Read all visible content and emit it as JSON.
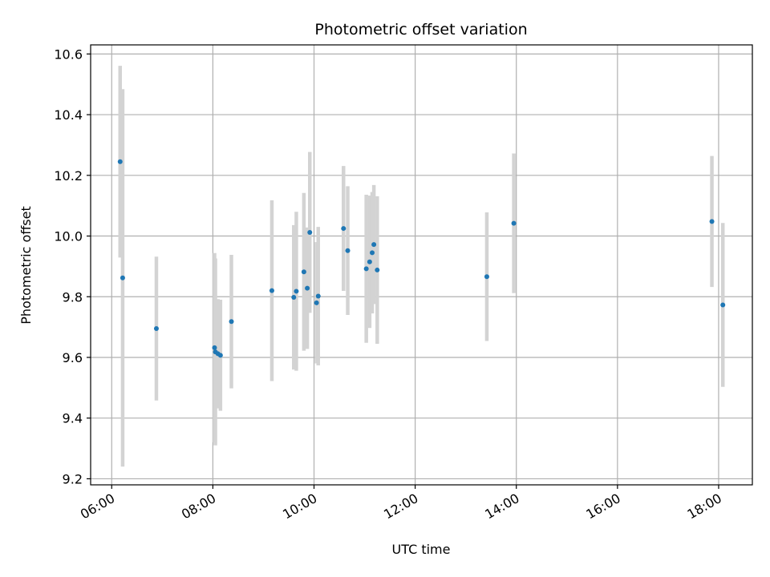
{
  "chart_data": {
    "type": "scatter",
    "title": "Photometric offset variation",
    "xlabel": "UTC time",
    "ylabel": "Photometric offset",
    "grid": true,
    "xlim": [
      "05:35",
      "18:40"
    ],
    "ylim": [
      9.18,
      10.63
    ],
    "x_ticks": [
      "06:00",
      "08:00",
      "10:00",
      "12:00",
      "14:00",
      "16:00",
      "18:00"
    ],
    "y_ticks": [
      9.2,
      9.4,
      9.6,
      9.8,
      10.0,
      10.2,
      10.4,
      10.6
    ],
    "y_tick_labels": [
      "9.2",
      "9.4",
      "9.6",
      "9.8",
      "10.0",
      "10.2",
      "10.4",
      "10.6"
    ],
    "point_color": "#1f77b4",
    "errorbar_color": "#d3d3d3",
    "points": [
      {
        "x": "06:10",
        "y": 10.245,
        "err": 0.316
      },
      {
        "x": "06:13",
        "y": 9.862,
        "err": 0.622
      },
      {
        "x": "06:53",
        "y": 9.695,
        "err": 0.237
      },
      {
        "x": "08:02",
        "y": 9.632,
        "err": 0.312
      },
      {
        "x": "08:03",
        "y": 9.618,
        "err": 0.308
      },
      {
        "x": "08:06",
        "y": 9.612,
        "err": 0.18
      },
      {
        "x": "08:09",
        "y": 9.607,
        "err": 0.183
      },
      {
        "x": "08:22",
        "y": 9.718,
        "err": 0.22
      },
      {
        "x": "09:10",
        "y": 9.82,
        "err": 0.298
      },
      {
        "x": "09:36",
        "y": 9.798,
        "err": 0.238
      },
      {
        "x": "09:39",
        "y": 9.818,
        "err": 0.262
      },
      {
        "x": "09:48",
        "y": 9.882,
        "err": 0.26
      },
      {
        "x": "09:52",
        "y": 9.828,
        "err": 0.2
      },
      {
        "x": "09:55",
        "y": 10.012,
        "err": 0.265
      },
      {
        "x": "10:03",
        "y": 9.78,
        "err": 0.2
      },
      {
        "x": "10:05",
        "y": 9.802,
        "err": 0.228
      },
      {
        "x": "10:35",
        "y": 10.025,
        "err": 0.206
      },
      {
        "x": "10:40",
        "y": 9.952,
        "err": 0.212
      },
      {
        "x": "11:02",
        "y": 9.892,
        "err": 0.244
      },
      {
        "x": "11:06",
        "y": 9.915,
        "err": 0.218
      },
      {
        "x": "11:09",
        "y": 9.945,
        "err": 0.2
      },
      {
        "x": "11:11",
        "y": 9.972,
        "err": 0.196
      },
      {
        "x": "11:15",
        "y": 9.888,
        "err": 0.243
      },
      {
        "x": "13:25",
        "y": 9.866,
        "err": 0.212
      },
      {
        "x": "13:57",
        "y": 10.042,
        "err": 0.23
      },
      {
        "x": "17:52",
        "y": 10.048,
        "err": 0.216
      },
      {
        "x": "18:05",
        "y": 9.773,
        "err": 0.27
      }
    ]
  }
}
